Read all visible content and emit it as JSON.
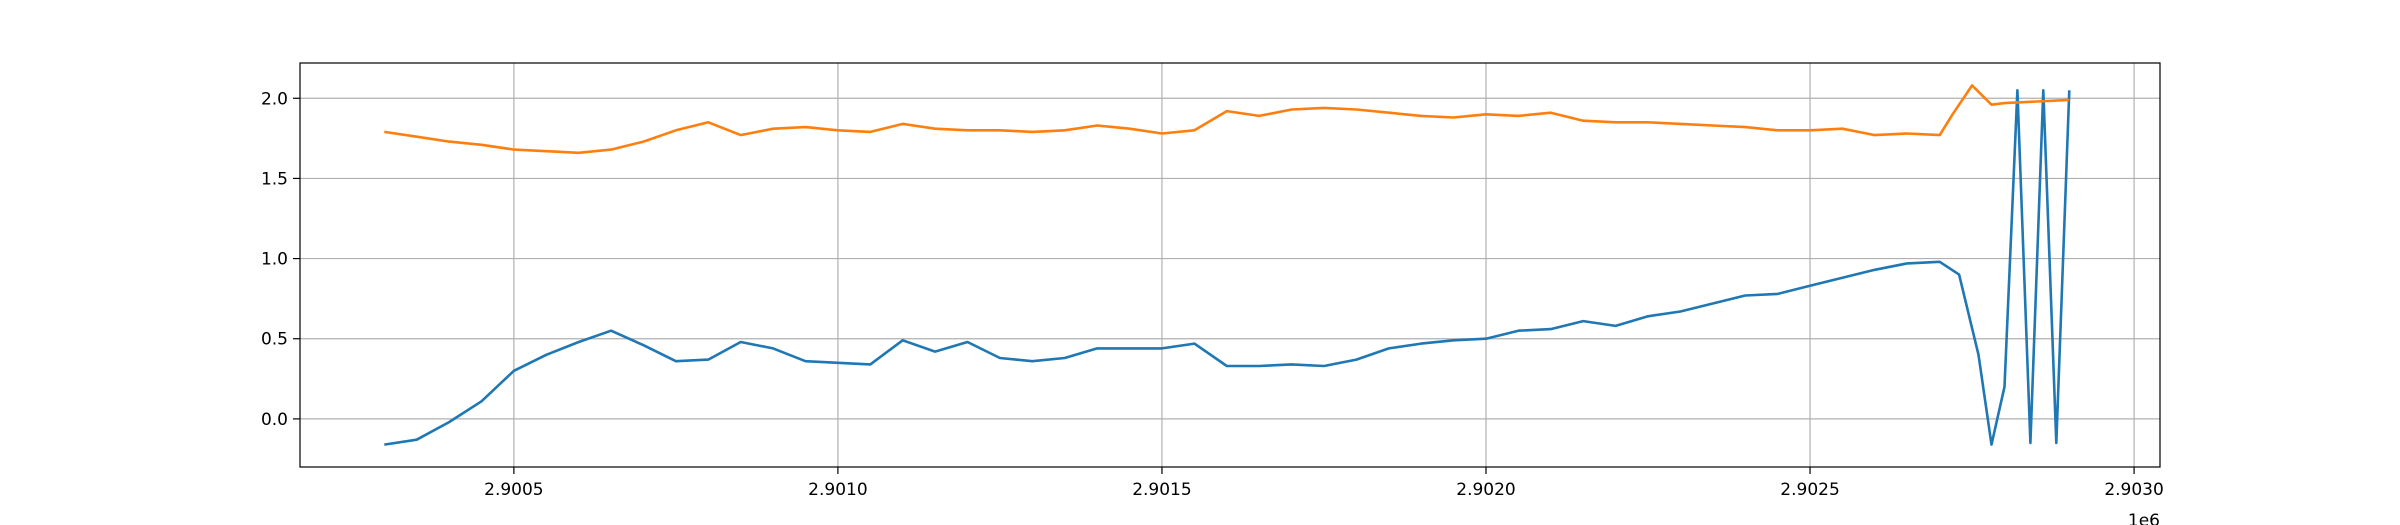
{
  "chart_data": {
    "type": "line",
    "title": "",
    "xlabel": "",
    "ylabel": "",
    "x_offset_label": "1e6",
    "xlim": [
      2.90017,
      2.90304
    ],
    "ylim": [
      -0.3,
      2.22
    ],
    "x_ticks": [
      2.9005,
      2.901,
      2.9015,
      2.902,
      2.9025,
      2.903
    ],
    "x_tick_labels": [
      "2.9005",
      "2.9010",
      "2.9015",
      "2.9020",
      "2.9025",
      "2.9030"
    ],
    "y_ticks": [
      0.0,
      0.5,
      1.0,
      1.5,
      2.0
    ],
    "y_tick_labels": [
      "0.0",
      "0.5",
      "1.0",
      "1.5",
      "2.0"
    ],
    "grid": true,
    "series": [
      {
        "color": "#1f77b4",
        "x": [
          2.9003,
          2.90035,
          2.9004,
          2.90045,
          2.9005,
          2.90055,
          2.9006,
          2.90065,
          2.9007,
          2.90075,
          2.9008,
          2.90085,
          2.9009,
          2.90095,
          2.901,
          2.90105,
          2.9011,
          2.90115,
          2.9012,
          2.90125,
          2.9013,
          2.90135,
          2.9014,
          2.90145,
          2.9015,
          2.90155,
          2.9016,
          2.90165,
          2.9017,
          2.90175,
          2.9018,
          2.90185,
          2.9019,
          2.90195,
          2.902,
          2.90205,
          2.9021,
          2.90215,
          2.9022,
          2.90225,
          2.9023,
          2.90235,
          2.9024,
          2.90245,
          2.9025,
          2.90255,
          2.9026,
          2.90265,
          2.9027,
          2.90273,
          2.90276,
          2.90278,
          2.9028,
          2.90282,
          2.90284,
          2.90286,
          2.90288,
          2.9029
        ],
        "y": [
          -0.16,
          -0.13,
          -0.02,
          0.11,
          0.3,
          0.4,
          0.48,
          0.55,
          0.46,
          0.36,
          0.37,
          0.48,
          0.44,
          0.36,
          0.35,
          0.34,
          0.49,
          0.42,
          0.48,
          0.38,
          0.36,
          0.38,
          0.44,
          0.44,
          0.44,
          0.47,
          0.33,
          0.33,
          0.34,
          0.33,
          0.37,
          0.44,
          0.47,
          0.49,
          0.5,
          0.55,
          0.56,
          0.61,
          0.58,
          0.64,
          0.67,
          0.72,
          0.77,
          0.78,
          0.83,
          0.88,
          0.93,
          0.97,
          0.98,
          0.9,
          0.4,
          -0.16,
          0.2,
          2.05,
          -0.15,
          2.05,
          -0.15,
          2.05
        ]
      },
      {
        "color": "#ff7f0e",
        "x": [
          2.9003,
          2.90035,
          2.9004,
          2.90045,
          2.9005,
          2.90055,
          2.9006,
          2.90065,
          2.9007,
          2.90075,
          2.9008,
          2.90085,
          2.9009,
          2.90095,
          2.901,
          2.90105,
          2.9011,
          2.90115,
          2.9012,
          2.90125,
          2.9013,
          2.90135,
          2.9014,
          2.90145,
          2.9015,
          2.90155,
          2.9016,
          2.90165,
          2.9017,
          2.90175,
          2.9018,
          2.90185,
          2.9019,
          2.90195,
          2.902,
          2.90205,
          2.9021,
          2.90215,
          2.9022,
          2.90225,
          2.9023,
          2.90235,
          2.9024,
          2.90245,
          2.9025,
          2.90255,
          2.9026,
          2.90265,
          2.9027,
          2.90272,
          2.90275,
          2.90278,
          2.9028,
          2.90285,
          2.9029
        ],
        "y": [
          1.79,
          1.76,
          1.73,
          1.71,
          1.68,
          1.67,
          1.66,
          1.68,
          1.73,
          1.8,
          1.85,
          1.77,
          1.81,
          1.82,
          1.8,
          1.79,
          1.84,
          1.81,
          1.8,
          1.8,
          1.79,
          1.8,
          1.83,
          1.81,
          1.78,
          1.8,
          1.92,
          1.89,
          1.93,
          1.94,
          1.93,
          1.91,
          1.89,
          1.88,
          1.9,
          1.89,
          1.91,
          1.86,
          1.85,
          1.85,
          1.84,
          1.83,
          1.82,
          1.8,
          1.8,
          1.81,
          1.77,
          1.78,
          1.77,
          1.9,
          2.08,
          1.96,
          1.97,
          1.98,
          1.99
        ]
      }
    ]
  }
}
